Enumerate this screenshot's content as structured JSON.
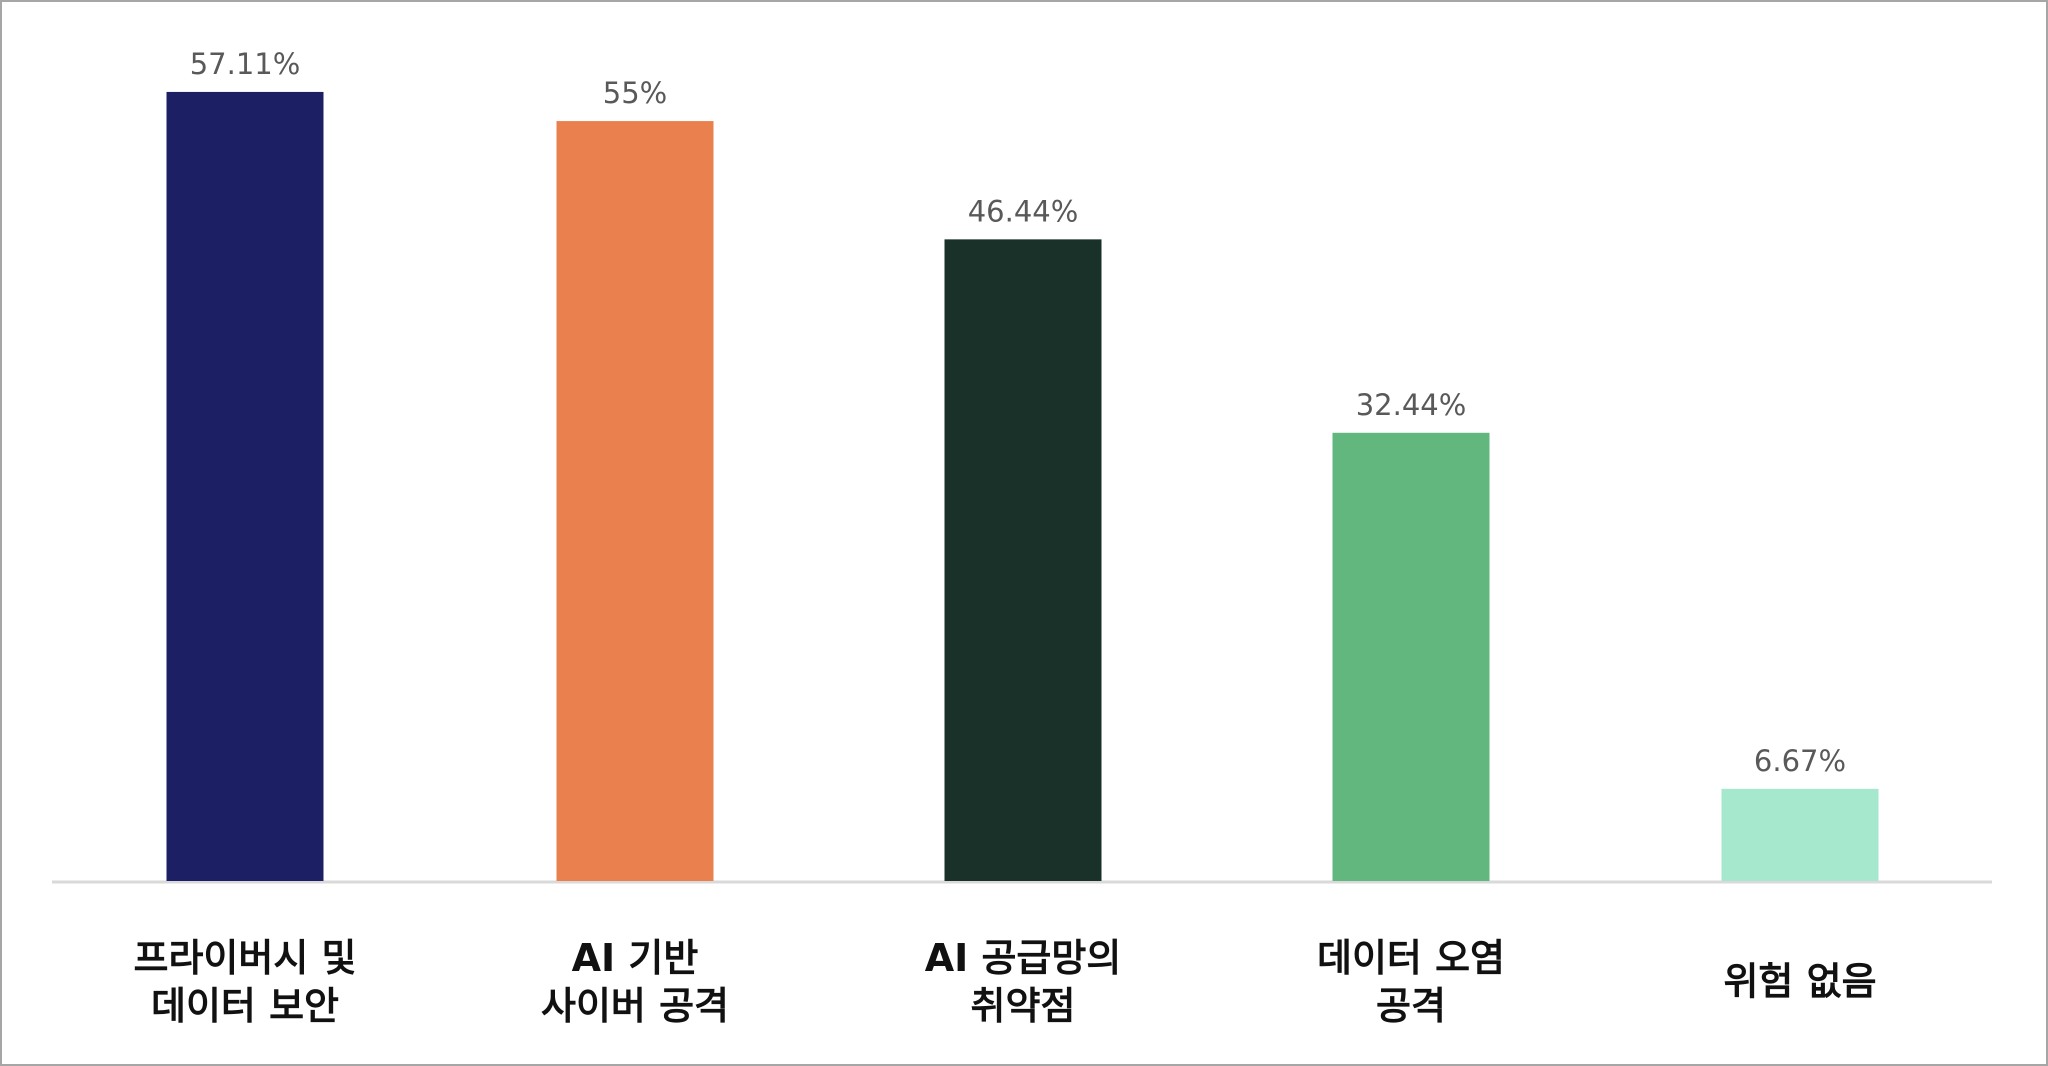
{
  "chart_data": {
    "type": "bar",
    "categories": [
      "프라이버시 및\n데이터 보안",
      "AI 기반\n사이버 공격",
      "AI 공급망의\n취약점",
      "데이터 오염\n공격",
      "위험 없음"
    ],
    "values": [
      57.11,
      55,
      46.44,
      32.44,
      6.67
    ],
    "value_labels": [
      "57.11%",
      "55%",
      "46.44%",
      "32.44%",
      "6.67%"
    ],
    "colors": [
      "#1c1f63",
      "#e9804e",
      "#1a3129",
      "#62b77f",
      "#a6e8cd"
    ],
    "ylim": [
      0,
      60
    ]
  }
}
